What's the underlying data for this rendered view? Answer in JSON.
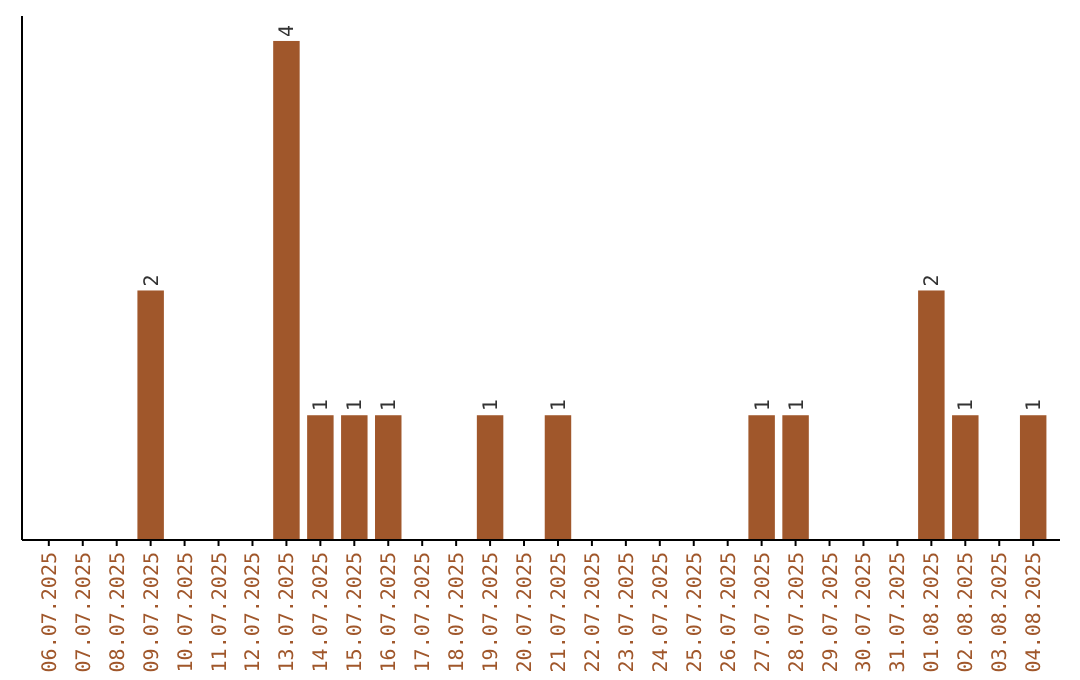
{
  "chart_data": {
    "type": "bar",
    "categories": [
      "06.07.2025",
      "07.07.2025",
      "08.07.2025",
      "09.07.2025",
      "10.07.2025",
      "11.07.2025",
      "12.07.2025",
      "13.07.2025",
      "14.07.2025",
      "15.07.2025",
      "16.07.2025",
      "17.07.2025",
      "18.07.2025",
      "19.07.2025",
      "20.07.2025",
      "21.07.2025",
      "22.07.2025",
      "23.07.2025",
      "24.07.2025",
      "25.07.2025",
      "26.07.2025",
      "27.07.2025",
      "28.07.2025",
      "29.07.2025",
      "30.07.2025",
      "31.07.2025",
      "01.08.2025",
      "02.08.2025",
      "03.08.2025",
      "04.08.2025"
    ],
    "values": [
      0,
      0,
      0,
      2,
      0,
      0,
      0,
      4,
      1,
      1,
      1,
      0,
      0,
      1,
      0,
      1,
      0,
      0,
      0,
      0,
      0,
      1,
      1,
      0,
      0,
      0,
      2,
      1,
      0,
      1
    ],
    "value_labels": [
      null,
      null,
      null,
      "2",
      null,
      null,
      null,
      "4",
      "1",
      "1",
      "1",
      null,
      null,
      "1",
      null,
      "1",
      null,
      null,
      null,
      null,
      null,
      "1",
      "1",
      null,
      null,
      null,
      "2",
      "1",
      null,
      "1"
    ],
    "color": "#a0572b",
    "relative": false
  }
}
